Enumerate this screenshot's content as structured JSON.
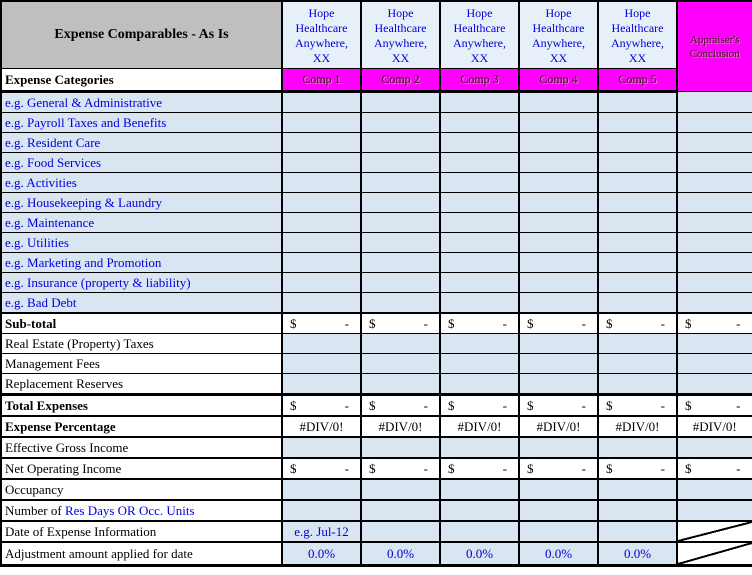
{
  "header": {
    "title": "Expense Comparables - As Is",
    "categories_label": "Expense Categories",
    "comp_column_title": "Hope\nHealthcare\nAnywhere,\nXX",
    "comps": [
      "Comp 1",
      "Comp 2",
      "Comp 3",
      "Comp 4",
      "Comp 5"
    ],
    "conclusion_label": "Appraiser's Conclusion"
  },
  "cell_text": {
    "dollar": "$",
    "dash": "-",
    "div0": "#DIV/0!",
    "pct": "0.0%",
    "date_example": "e.g. Jul-12"
  },
  "colors": {
    "magenta": "#FF00FF",
    "header_gray": "#BFBFBF",
    "light_blue_fill": "#D9E5F0",
    "header_blue_fill": "#E7EFF8",
    "blue_text": "#0000DC",
    "border_black": "#000000"
  },
  "rows": [
    {
      "name": "general-administrative",
      "label": "e.g. General & Administrative",
      "style": "category",
      "cells": [
        "eb",
        "eb",
        "eb",
        "eb",
        "eb",
        "eb"
      ]
    },
    {
      "name": "payroll-taxes-benefits",
      "label": "e.g. Payroll Taxes and Benefits",
      "style": "category",
      "cells": [
        "eb",
        "eb",
        "eb",
        "eb",
        "eb",
        "eb"
      ]
    },
    {
      "name": "resident-care",
      "label": "e.g. Resident Care",
      "style": "category",
      "cells": [
        "eb",
        "eb",
        "eb",
        "eb",
        "eb",
        "eb"
      ]
    },
    {
      "name": "food-services",
      "label": "e.g. Food Services",
      "style": "category",
      "cells": [
        "eb",
        "eb",
        "eb",
        "eb",
        "eb",
        "eb"
      ]
    },
    {
      "name": "activities",
      "label": "e.g. Activities",
      "style": "category",
      "cells": [
        "eb",
        "eb",
        "eb",
        "eb",
        "eb",
        "eb"
      ]
    },
    {
      "name": "housekeeping-laundry",
      "label": "e.g. Housekeeping  & Laundry",
      "style": "category",
      "cells": [
        "eb",
        "eb",
        "eb",
        "eb",
        "eb",
        "eb"
      ]
    },
    {
      "name": "maintenance",
      "label": "e.g. Maintenance",
      "style": "category",
      "cells": [
        "eb",
        "eb",
        "eb",
        "eb",
        "eb",
        "eb"
      ]
    },
    {
      "name": "utilities",
      "label": "e.g. Utilities",
      "style": "category",
      "cells": [
        "eb",
        "eb",
        "eb",
        "eb",
        "eb",
        "eb"
      ]
    },
    {
      "name": "marketing-promotion",
      "label": "e.g. Marketing and Promotion",
      "style": "category",
      "cells": [
        "eb",
        "eb",
        "eb",
        "eb",
        "eb",
        "eb"
      ]
    },
    {
      "name": "insurance-property-liability",
      "label": "e.g. Insurance (property & liability)",
      "style": "category",
      "cells": [
        "eb",
        "eb",
        "eb",
        "eb",
        "eb",
        "eb"
      ]
    },
    {
      "name": "bad-debt",
      "label": "e.g. Bad Debt",
      "style": "category",
      "cells": [
        "eb",
        "eb",
        "eb",
        "eb",
        "eb",
        "eb"
      ]
    },
    {
      "name": "sub-total",
      "label": "Sub-total",
      "style": "total",
      "divider": "med",
      "cells": [
        "money",
        "money",
        "money",
        "money",
        "money",
        "money"
      ]
    },
    {
      "name": "real-estate-property-taxes",
      "label": "Real Estate (Property) Taxes",
      "style": "plain",
      "cells": [
        "eb",
        "eb",
        "eb",
        "eb",
        "eb",
        "eb"
      ]
    },
    {
      "name": "management-fees",
      "label": "Management Fees",
      "style": "plain",
      "cells": [
        "eb",
        "eb",
        "eb",
        "eb",
        "eb",
        "eb"
      ]
    },
    {
      "name": "replacement-reserves",
      "label": "Replacement Reserves",
      "style": "plain",
      "cells": [
        "eb",
        "eb",
        "eb",
        "eb",
        "eb",
        "eb"
      ]
    },
    {
      "name": "total-expenses",
      "label": "Total Expenses",
      "style": "total",
      "divider": "thick",
      "cells": [
        "money",
        "money",
        "money",
        "money",
        "money",
        "money"
      ]
    },
    {
      "name": "expense-percentage",
      "label": "Expense Percentage",
      "style": "total",
      "divider": "med",
      "cells": [
        "div0",
        "div0",
        "div0",
        "div0",
        "div0",
        "div0"
      ]
    },
    {
      "name": "effective-gross-income",
      "label": "Effective Gross Income",
      "style": "plain",
      "divider": "med",
      "cells": [
        "eb",
        "eb",
        "eb",
        "eb",
        "eb",
        "eb"
      ]
    },
    {
      "name": "net-operating-income",
      "label": "Net Operating Income",
      "style": "plain",
      "divider": "med",
      "cells": [
        "money",
        "money",
        "money",
        "money",
        "money",
        "money"
      ]
    },
    {
      "name": "occupancy",
      "label": "Occupancy",
      "style": "plain",
      "divider": "med",
      "cells": [
        "eb",
        "eb",
        "eb",
        "eb",
        "eb",
        "eb"
      ]
    },
    {
      "name": "number-of-res-days",
      "style": "plain",
      "divider": "med",
      "label_parts": [
        {
          "text": "Number of ",
          "color": "black"
        },
        {
          "text": "Res Days OR Occ. Units",
          "color": "blue"
        }
      ],
      "cells": [
        "eb",
        "eb",
        "eb",
        "eb",
        "eb",
        "eb"
      ]
    },
    {
      "name": "date-of-expense-information",
      "label": "Date of Expense Information",
      "style": "plain",
      "divider": "med",
      "cells": [
        "date",
        "eb",
        "eb",
        "eb",
        "eb",
        "diag"
      ]
    },
    {
      "name": "adjustment-amount-applied",
      "label": "Adjustment amount applied for date",
      "style": "plain",
      "divider": "med",
      "tall": true,
      "cells": [
        "pct",
        "pct",
        "pct",
        "pct",
        "pct",
        "diag"
      ]
    }
  ]
}
